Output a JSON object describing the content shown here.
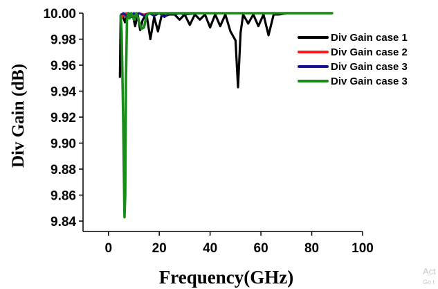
{
  "chart_data": {
    "type": "line",
    "title": "",
    "xlabel": "Frequency(GHz)",
    "ylabel": "Div Gain (dB)",
    "xlim": [
      -10,
      100
    ],
    "ylim": [
      9.832,
      10.0
    ],
    "xticks": [
      "0",
      "20",
      "40",
      "60",
      "80",
      "100"
    ],
    "yticks": [
      "10.00",
      "9.98",
      "9.96",
      "9.94",
      "9.92",
      "9.90",
      "9.88",
      "9.86",
      "9.84"
    ],
    "grid": false,
    "legend_position": "right",
    "series": [
      {
        "name": "Div Gain case 1",
        "color": "#000000",
        "x": [
          4.5,
          4.8,
          5.5,
          6.5,
          7.5,
          8.5,
          9.5,
          10.5,
          11.5,
          12.5,
          13.5,
          15,
          16.5,
          18,
          19.5,
          21,
          22.5,
          24,
          26,
          28,
          30,
          32,
          34,
          36,
          38,
          40,
          42,
          44,
          46,
          48,
          50,
          51,
          52,
          53,
          55,
          57,
          59,
          61,
          63,
          65,
          67,
          70,
          75,
          80,
          85,
          88
        ],
        "y": [
          9.951,
          9.998,
          9.999,
          9.993,
          9.999,
          9.997,
          9.999,
          9.99,
          9.999,
          9.987,
          9.995,
          9.999,
          9.98,
          9.997,
          9.986,
          9.999,
          9.998,
          9.999,
          9.999,
          9.995,
          9.999,
          9.991,
          9.999,
          9.995,
          9.999,
          9.989,
          9.999,
          9.99,
          9.999,
          9.986,
          9.979,
          9.943,
          9.985,
          9.999,
          9.992,
          9.999,
          9.99,
          9.999,
          9.983,
          9.999,
          9.999,
          10.0,
          10.0,
          10.0,
          10.0,
          10.0
        ]
      },
      {
        "name": "Div Gain case 2",
        "color": "#ff1a1a",
        "x": [
          5,
          5.3,
          5.8,
          6.3,
          7,
          8,
          9,
          10,
          12,
          14,
          16,
          20,
          30,
          40,
          50,
          60,
          70,
          80,
          88
        ],
        "y": [
          9.999,
          9.996,
          10.0,
          9.998,
          10.0,
          9.999,
          10.0,
          9.999,
          10.0,
          9.999,
          10.0,
          10.0,
          10.0,
          10.0,
          10.0,
          10.0,
          10.0,
          10.0,
          10.0
        ]
      },
      {
        "name": "Div Gain case 3",
        "color": "#14148c",
        "x": [
          5,
          6,
          7,
          8,
          9,
          10,
          11,
          12,
          14,
          16,
          18,
          20,
          22,
          24,
          26,
          28,
          30,
          35,
          40,
          45,
          50,
          55,
          60,
          70,
          80,
          88
        ],
        "y": [
          9.999,
          10.0,
          9.998,
          10.0,
          9.997,
          10.0,
          9.999,
          10.0,
          9.998,
          10.0,
          9.998,
          10.0,
          9.997,
          10.0,
          9.999,
          10.0,
          9.999,
          10.0,
          10.0,
          10.0,
          10.0,
          10.0,
          10.0,
          10.0,
          10.0,
          10.0
        ]
      },
      {
        "name": "Div Gain case 3",
        "color": "#1a8c1a",
        "x": [
          4.8,
          5.2,
          5.8,
          6.3,
          6.6,
          6.9,
          7.3,
          7.8,
          8.3,
          9,
          10,
          11,
          12,
          13,
          14,
          15,
          16,
          18,
          20,
          25,
          30,
          40,
          50,
          60,
          70,
          80,
          88
        ],
        "y": [
          9.998,
          9.985,
          9.92,
          9.843,
          9.86,
          9.95,
          9.995,
          10.0,
          9.996,
          10.0,
          9.995,
          10.0,
          9.994,
          9.988,
          9.989,
          9.998,
          10.0,
          10.0,
          10.0,
          10.0,
          10.0,
          10.0,
          10.0,
          10.0,
          10.0,
          10.0,
          10.0
        ]
      }
    ]
  },
  "watermark": {
    "line1": "Act",
    "line2": "Go t"
  }
}
